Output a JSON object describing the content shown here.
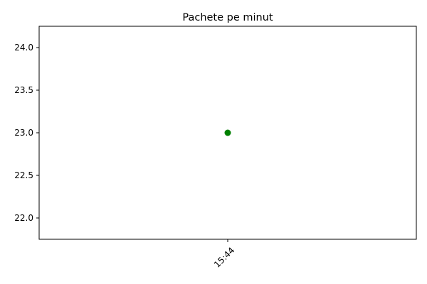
{
  "chart_data": {
    "type": "scatter",
    "title": "Pachete pe minut",
    "xlabel": "",
    "ylabel": "",
    "x": [
      "15:44"
    ],
    "y": [
      23.0
    ],
    "ylim": [
      21.75,
      24.25
    ],
    "y_ticks": [
      22.0,
      22.5,
      23.0,
      23.5,
      24.0
    ],
    "y_tick_labels": [
      "22.0",
      "22.5",
      "23.0",
      "23.5",
      "24.0"
    ],
    "x_tick_labels": [
      "15:44"
    ],
    "x_tick_rotation": 45,
    "grid": false,
    "legend": "none",
    "marker": "circle",
    "point_color": "#008000"
  }
}
